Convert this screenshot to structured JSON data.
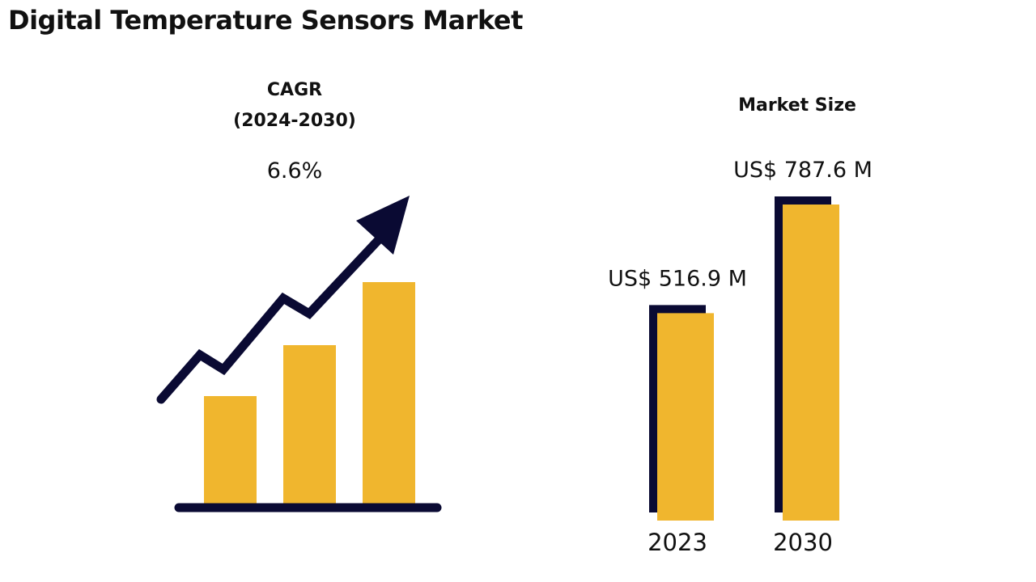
{
  "page_title": "Digital Temperature Sensors Market",
  "colors": {
    "bar": "#F0B62E",
    "accent": "#0A0A33",
    "text": "#111111"
  },
  "cagr": {
    "label_line1": "CAGR",
    "label_line2": "(2024-2030)",
    "value": "6.6%",
    "graphic_icon": "rising-trend-arrow-icon"
  },
  "chart_data": {
    "type": "bar",
    "title": "Market Size",
    "categories": [
      "2023",
      "2030"
    ],
    "values": [
      516.9,
      787.6
    ],
    "value_labels": [
      "US$ 516.9 M",
      "US$ 787.6 M"
    ],
    "unit": "US$ M",
    "xlabel": "",
    "ylabel": "",
    "ylim": [
      0,
      800
    ]
  }
}
